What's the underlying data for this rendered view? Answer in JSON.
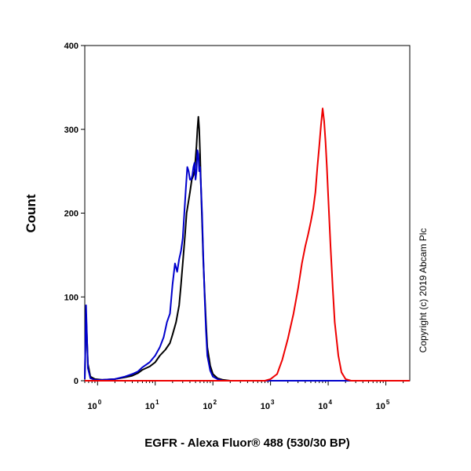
{
  "chart_data": {
    "type": "line",
    "title": "",
    "xlabel": "EGFR - Alexa Fluor® 488 (530/30 BP)",
    "ylabel": "Count",
    "x_scale": "log",
    "xlim": [
      0.6,
      260000
    ],
    "ylim": [
      0,
      400
    ],
    "y_ticks": [
      0,
      100,
      200,
      300,
      400
    ],
    "x_ticks": [
      {
        "value": 1,
        "base": "10",
        "exp": "0"
      },
      {
        "value": 10,
        "base": "10",
        "exp": "1"
      },
      {
        "value": 100,
        "base": "10",
        "exp": "2"
      },
      {
        "value": 1000,
        "base": "10",
        "exp": "3"
      },
      {
        "value": 10000,
        "base": "10",
        "exp": "4"
      },
      {
        "value": 100000,
        "base": "10",
        "exp": "5"
      }
    ],
    "grid": false,
    "legend": "none",
    "annotation": "Copyright (c) 2019 Abcam Plc",
    "series": [
      {
        "color": "#000000",
        "x": [
          0.6,
          0.63,
          0.68,
          0.75,
          0.9,
          1.2,
          2,
          3,
          4,
          5,
          6,
          8,
          10,
          12,
          15,
          18,
          20,
          23,
          26,
          28,
          30,
          33,
          35,
          38,
          40,
          43,
          46,
          48,
          50,
          52,
          54,
          56,
          58,
          60,
          62,
          65,
          68,
          72,
          76,
          80,
          90,
          100,
          120,
          150,
          200,
          260000
        ],
        "y": [
          2,
          80,
          20,
          5,
          2,
          1,
          2,
          4,
          6,
          9,
          13,
          17,
          22,
          30,
          37,
          45,
          55,
          70,
          90,
          115,
          140,
          175,
          200,
          215,
          225,
          240,
          245,
          250,
          265,
          280,
          300,
          315,
          300,
          270,
          235,
          190,
          145,
          105,
          70,
          40,
          18,
          8,
          3,
          1,
          0,
          0
        ]
      },
      {
        "color": "#0000cc",
        "x": [
          0.6,
          0.63,
          0.68,
          0.75,
          0.9,
          1.2,
          2,
          3,
          4,
          5,
          6,
          8,
          10,
          12,
          14,
          16,
          18,
          20,
          22,
          24,
          26,
          28,
          30,
          32,
          34,
          36,
          38,
          40,
          42,
          44,
          46,
          48,
          50,
          52,
          54,
          56,
          58,
          60,
          62,
          65,
          68,
          72,
          76,
          80,
          90,
          100,
          120,
          150,
          200,
          260000
        ],
        "y": [
          2,
          90,
          15,
          3,
          1,
          1,
          2,
          5,
          8,
          11,
          16,
          22,
          30,
          40,
          52,
          70,
          80,
          115,
          140,
          130,
          145,
          155,
          170,
          200,
          230,
          255,
          250,
          240,
          240,
          245,
          255,
          260,
          240,
          250,
          275,
          270,
          250,
          255,
          235,
          200,
          150,
          100,
          60,
          30,
          12,
          5,
          2,
          0,
          0,
          0
        ]
      },
      {
        "color": "#ee0000",
        "x": [
          0.6,
          800,
          1000,
          1300,
          1600,
          2000,
          2500,
          3000,
          3500,
          4000,
          4500,
          5000,
          5500,
          6000,
          6500,
          7000,
          7500,
          8000,
          8500,
          9000,
          9500,
          10000,
          11000,
          12000,
          13000,
          15000,
          17000,
          20000,
          25000,
          260000
        ],
        "y": [
          0,
          0,
          2,
          8,
          25,
          50,
          80,
          110,
          140,
          160,
          175,
          190,
          205,
          225,
          255,
          280,
          305,
          325,
          310,
          285,
          255,
          220,
          160,
          110,
          70,
          30,
          10,
          2,
          0,
          0
        ]
      }
    ]
  }
}
